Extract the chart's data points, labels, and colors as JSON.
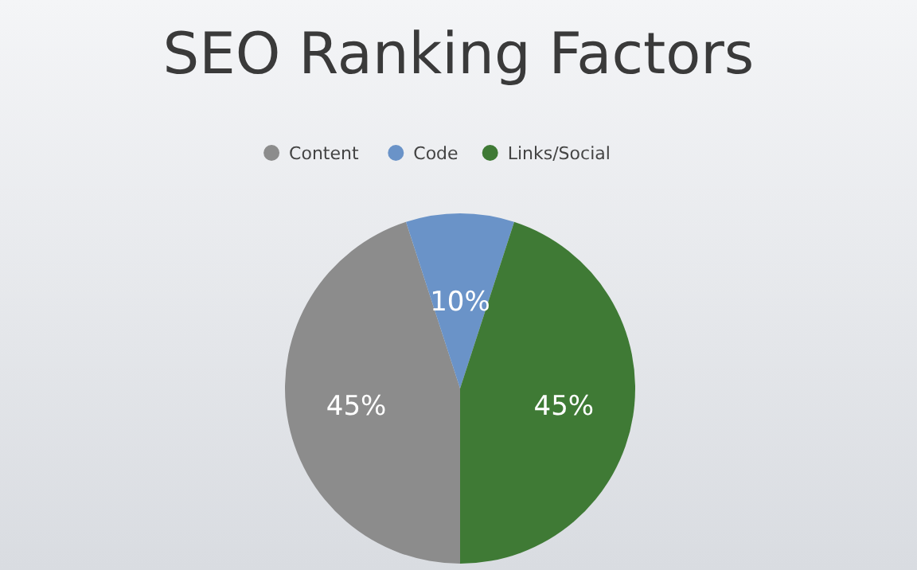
{
  "chart_data": {
    "type": "pie",
    "title": "SEO Ranking Factors",
    "categories": [
      "Content",
      "Code",
      "Links/Social"
    ],
    "values": [
      45,
      10,
      45
    ],
    "colors": [
      "#8c8c8c",
      "#6a93c8",
      "#3f7a35"
    ],
    "value_labels": [
      "45%",
      "10%",
      "45%"
    ],
    "legend": "top"
  }
}
